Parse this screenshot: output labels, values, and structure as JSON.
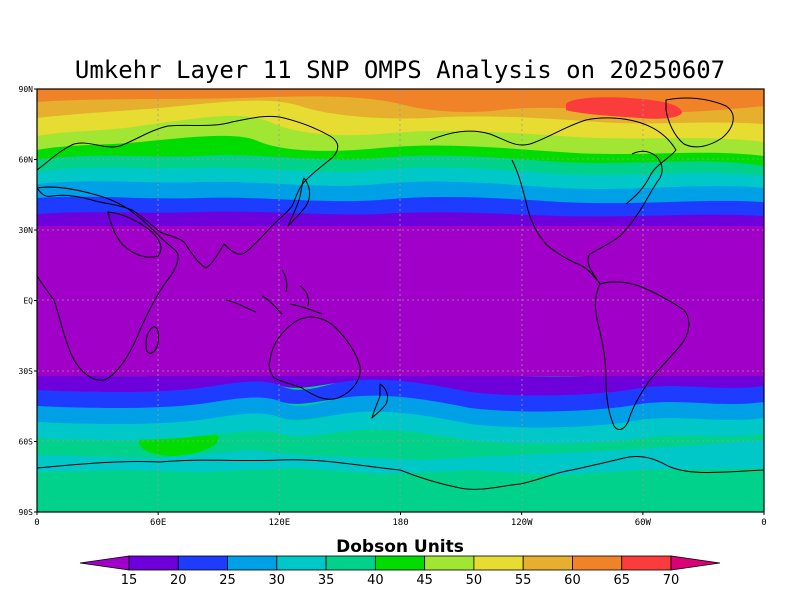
{
  "title": "Umkehr Layer 11 SNP OMPS Analysis on 20250607",
  "colorbar": {
    "title": "Dobson Units",
    "levels": [
      "15",
      "20",
      "25",
      "30",
      "35",
      "40",
      "45",
      "50",
      "55",
      "60",
      "65",
      "70"
    ],
    "colors": [
      "#a000c8",
      "#6e00dc",
      "#1e3cff",
      "#00a0e6",
      "#00c8c8",
      "#00d28c",
      "#00dc00",
      "#a0e632",
      "#e6dc32",
      "#e6af2d",
      "#f08228",
      "#fa3c3c",
      "#dc0078"
    ]
  },
  "map": {
    "lat_ticks": [
      "90N",
      "60N",
      "30N",
      "EQ",
      "30S",
      "60S",
      "90S"
    ],
    "lon_ticks": [
      "0",
      "60E",
      "120E",
      "180",
      "120W",
      "60W",
      "0"
    ],
    "projection": "cylindrical equidistant",
    "central_meridian": "180",
    "gridlines": "dotted"
  }
}
